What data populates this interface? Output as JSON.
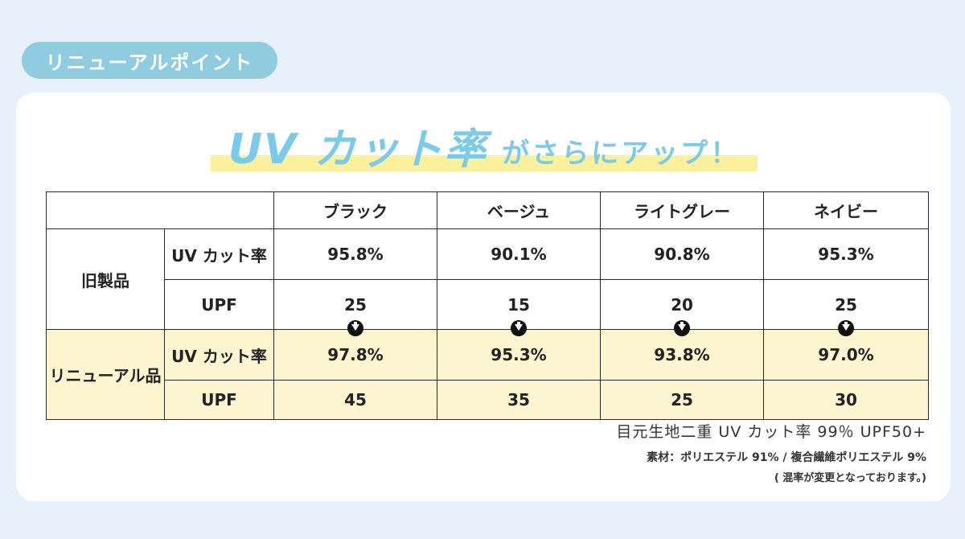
{
  "badge": "リニューアルポイント",
  "headline": {
    "big": "UV カット率",
    "small": "がさらにアップ！"
  },
  "table": {
    "colors": [
      "ブラック",
      "ベージュ",
      "ライトグレー",
      "ネイビー"
    ],
    "groups": [
      {
        "label": "旧製品",
        "rows": [
          {
            "label": "UV カット率",
            "values": [
              "95.8%",
              "90.1%",
              "90.8%",
              "95.3%"
            ]
          },
          {
            "label": "UPF",
            "values": [
              "25",
              "15",
              "20",
              "25"
            ]
          }
        ]
      },
      {
        "label": "リニューアル品",
        "rows": [
          {
            "label": "UV カット率",
            "values": [
              "97.8%",
              "95.3%",
              "93.8%",
              "97.0%"
            ]
          },
          {
            "label": "UPF",
            "values": [
              "45",
              "35",
              "25",
              "30"
            ]
          }
        ]
      }
    ]
  },
  "notes": {
    "line1": "目元生地二重 UV カット率 99％ UPF50+",
    "line2": "素材：ポリエステル 91% / 複合繊維ポリエステル 9%",
    "line3": "( 混率が変更となっております。)"
  },
  "colors": {
    "accent": "#7ccaea",
    "highlight": "#fbf09c",
    "badge": "#8fcce0",
    "new_value": "#d50f19",
    "new_row_bg": "#fcf5d0"
  },
  "icons": [
    "down-arrow-circle-icon"
  ]
}
